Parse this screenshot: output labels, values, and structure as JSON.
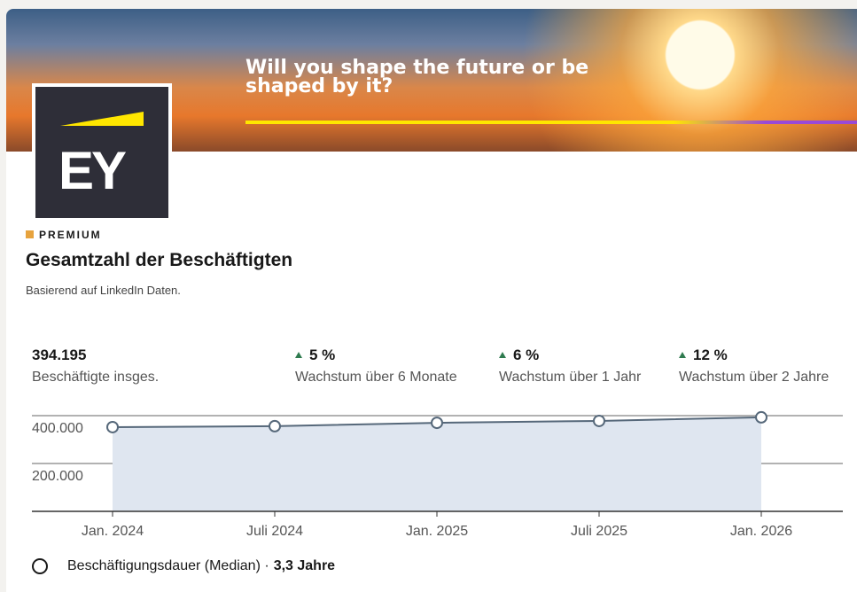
{
  "banner": {
    "headline": "Will you shape the future or be shaped by it?"
  },
  "logo": "EY",
  "badge": "PREMIUM",
  "title": "Gesamtzahl der Beschäftigten",
  "subtitle": "Basierend auf LinkedIn Daten.",
  "stats": [
    {
      "value": "394.195",
      "label": "Beschäftigte insges."
    },
    {
      "value": "5 %",
      "label": "Wachstum über 6 Monate"
    },
    {
      "value": "6 %",
      "label": "Wachstum über 1 Jahr"
    },
    {
      "value": "12 %",
      "label": "Wachstum über 2 Jahre"
    }
  ],
  "chart_data": {
    "type": "area",
    "categories": [
      "Jan. 2024",
      "Juli 2024",
      "Jan. 2025",
      "Juli 2025",
      "Jan. 2026"
    ],
    "values": [
      352000,
      356000,
      370000,
      378000,
      393000
    ],
    "ylim": [
      0,
      400000
    ],
    "yticks": [
      {
        "value": 200000,
        "label": "200.000"
      },
      {
        "value": 400000,
        "label": "400.000"
      }
    ],
    "color": "#56687a",
    "fill": "#dfe6f0",
    "grid": true
  },
  "footer": {
    "label": "Beschäftigungsdauer (Median) ·",
    "value": "3,3 Jahre"
  }
}
